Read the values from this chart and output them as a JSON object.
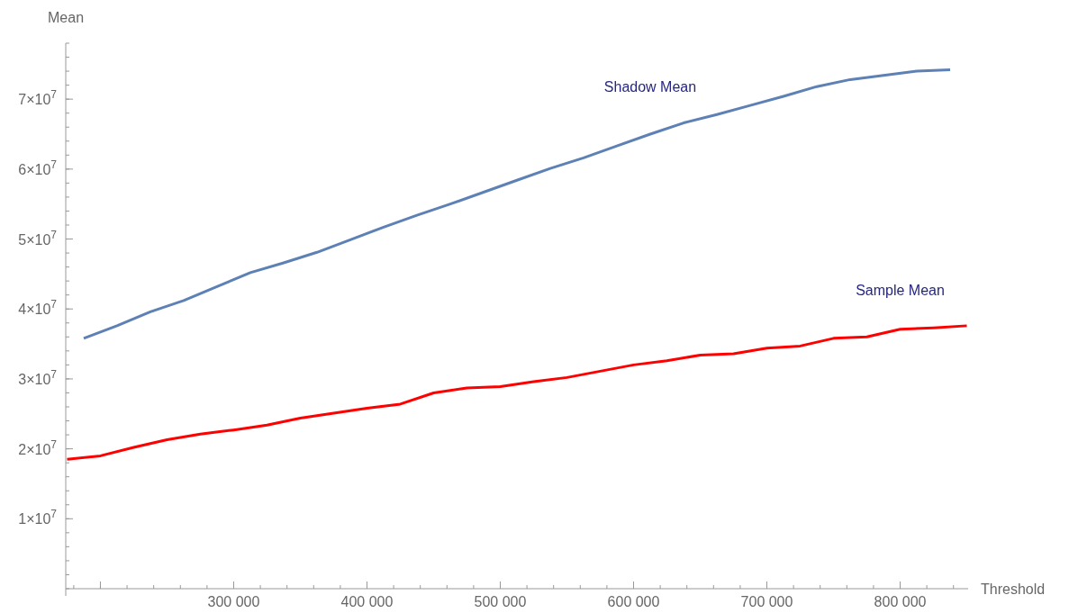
{
  "chart_data": {
    "type": "line",
    "xlabel": "Threshold",
    "ylabel": "Mean",
    "grid": false,
    "line_style": "solid",
    "xlim": [
      174000,
      851000
    ],
    "ylim": [
      0,
      78000000
    ],
    "xticks": [
      {
        "value": 200000,
        "label": null
      },
      {
        "value": 300000,
        "label": "300 000"
      },
      {
        "value": 400000,
        "label": "400 000"
      },
      {
        "value": 500000,
        "label": "500 000"
      },
      {
        "value": 600000,
        "label": "600 000"
      },
      {
        "value": 700000,
        "label": "700 000"
      },
      {
        "value": 800000,
        "label": "800 000"
      }
    ],
    "yticks": [
      {
        "value": 10000000,
        "label": "1×10$^{7}$"
      },
      {
        "value": 20000000,
        "label": "2×10$^{7}$"
      },
      {
        "value": 30000000,
        "label": "3×10$^{7}$"
      },
      {
        "value": 40000000,
        "label": "4×10$^{7}$"
      },
      {
        "value": 50000000,
        "label": "5×10$^{7}$"
      },
      {
        "value": 60000000,
        "label": "6×10$^{7}$"
      },
      {
        "value": 70000000,
        "label": "7×10$^{7}$"
      }
    ],
    "series": [
      {
        "name": "Shadow Mean",
        "color": "#5e81b5",
        "x": [
          187500,
          212500,
          237500,
          262500,
          287500,
          312500,
          337500,
          362500,
          387500,
          412500,
          437500,
          462500,
          487500,
          512500,
          537500,
          562500,
          587500,
          612500,
          637500,
          662500,
          687500,
          712500,
          737500,
          762500,
          787500,
          812500,
          837500
        ],
        "values": [
          35800000,
          37600000,
          39600000,
          41200000,
          43200000,
          45200000,
          46600000,
          48100000,
          49900000,
          51700000,
          53400000,
          55000000,
          56700000,
          58400000,
          60100000,
          61600000,
          63300000,
          65000000,
          66600000,
          67800000,
          69100000,
          70400000,
          71800000,
          72800000,
          73400000,
          74000000,
          74200000
        ]
      },
      {
        "name": "Sample Mean",
        "color": "#ff0000",
        "x": [
          175000,
          200000,
          225000,
          250000,
          275000,
          300000,
          325000,
          350000,
          375000,
          400000,
          425000,
          450000,
          475000,
          500000,
          525000,
          550000,
          575000,
          600000,
          625000,
          650000,
          675000,
          700000,
          725000,
          750000,
          775000,
          800000,
          825000,
          850000
        ],
        "values": [
          18500000,
          19000000,
          20200000,
          21300000,
          22100000,
          22700000,
          23400000,
          24400000,
          25100000,
          25800000,
          26400000,
          28000000,
          28700000,
          28900000,
          29600000,
          30200000,
          31100000,
          32000000,
          32600000,
          33400000,
          33600000,
          34400000,
          34700000,
          35800000,
          36000000,
          37100000,
          37300000,
          37600000
        ]
      }
    ]
  }
}
